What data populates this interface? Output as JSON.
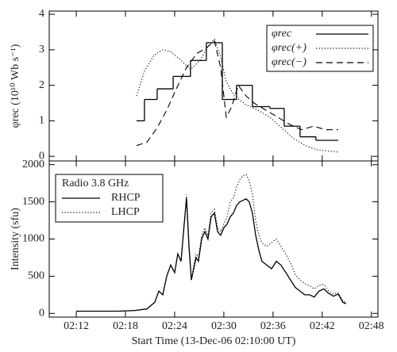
{
  "chart_data": [
    {
      "type": "line",
      "ylabel": "φrec (10¹⁰ Wb s⁻¹)",
      "xlim": [
        "02:08:42",
        "02:48:48"
      ],
      "xticks": [
        "02:12",
        "02:18",
        "02:24",
        "02:30",
        "02:36",
        "02:42",
        "02:48"
      ],
      "show_xtick_labels": false,
      "ylim": [
        -0.13,
        4.09
      ],
      "yticks": [
        0,
        1,
        2,
        3,
        4
      ],
      "legend": "upper right",
      "series": [
        {
          "name": "φrec",
          "color": "#000000",
          "linestyle": "solid",
          "drawstyle": "steps",
          "edges": [
            "02:19:21",
            "02:20:19",
            "02:21:52",
            "02:23:49",
            "02:25:56",
            "02:27:52",
            "02:29:49",
            "02:31:33",
            "02:33:29",
            "02:35:37",
            "02:37:22",
            "02:39:18",
            "02:41:14",
            "02:43:57"
          ],
          "values": [
            1.0,
            1.6,
            1.9,
            2.25,
            2.7,
            3.2,
            1.6,
            2.0,
            1.4,
            1.35,
            0.85,
            0.55,
            0.45
          ]
        },
        {
          "name": "φrec(+)",
          "color": "#000000",
          "linestyle": "dotted",
          "x": [
            "02:19:21",
            "02:20:19",
            "02:21:29",
            "02:22:33",
            "02:23:31",
            "02:24:47",
            "02:25:56",
            "02:27:06",
            "02:28:04",
            "02:28:51",
            "02:29:37",
            "02:30:18",
            "02:31:16",
            "02:32:43",
            "02:34:10",
            "02:35:37",
            "02:37:04",
            "02:38:31",
            "02:39:59",
            "02:41:26",
            "02:43:57"
          ],
          "values": [
            1.7,
            2.4,
            2.85,
            3.0,
            2.95,
            2.7,
            2.45,
            2.7,
            3.1,
            3.3,
            2.8,
            2.1,
            1.7,
            1.45,
            1.3,
            1.1,
            0.8,
            0.5,
            0.3,
            0.18,
            0.12
          ]
        },
        {
          "name": "φrec(−)",
          "color": "#000000",
          "linestyle": "dashed",
          "x": [
            "02:19:21",
            "02:20:37",
            "02:21:52",
            "02:23:02",
            "02:24:12",
            "02:25:27",
            "02:26:43",
            "02:27:52",
            "02:28:51",
            "02:29:37",
            "02:30:18",
            "02:30:58",
            "02:31:45",
            "02:32:43",
            "02:33:41",
            "02:35:08",
            "02:36:35",
            "02:38:02",
            "02:39:29",
            "02:40:57",
            "02:42:24",
            "02:43:57"
          ],
          "values": [
            0.3,
            0.4,
            0.8,
            1.3,
            1.9,
            2.5,
            2.9,
            3.05,
            3.25,
            2.5,
            1.1,
            1.4,
            2.0,
            1.7,
            1.5,
            1.3,
            1.1,
            0.9,
            0.75,
            0.85,
            0.75,
            0.75
          ]
        }
      ]
    },
    {
      "type": "line",
      "xlabel": "Start Time (13-Dec-06 02:10:00 UT)",
      "ylabel": "Intensity (sfu)",
      "xlim": [
        "02:08:42",
        "02:48:48"
      ],
      "xticks": [
        "02:12",
        "02:18",
        "02:24",
        "02:30",
        "02:36",
        "02:42",
        "02:48"
      ],
      "show_xtick_labels": true,
      "ylim": [
        -50,
        2050
      ],
      "yticks": [
        0,
        500,
        1000,
        1500,
        2000
      ],
      "legend": "upper left",
      "legend_title": "Radio 3.8 GHz",
      "x": [
        "02:12:00",
        "02:17:14",
        "02:19:10",
        "02:20:37",
        "02:21:35",
        "02:22:04",
        "02:22:33",
        "02:23:02",
        "02:23:31",
        "02:24:00",
        "02:24:23",
        "02:24:47",
        "02:25:10",
        "02:25:27",
        "02:25:45",
        "02:26:02",
        "02:26:20",
        "02:26:37",
        "02:26:54",
        "02:27:18",
        "02:27:41",
        "02:28:04",
        "02:28:27",
        "02:28:51",
        "02:29:14",
        "02:29:37",
        "02:30:00",
        "02:30:24",
        "02:30:47",
        "02:31:10",
        "02:31:33",
        "02:31:56",
        "02:32:20",
        "02:32:43",
        "02:33:06",
        "02:33:29",
        "02:33:53",
        "02:34:16",
        "02:34:39",
        "02:35:14",
        "02:35:49",
        "02:36:24",
        "02:36:58",
        "02:37:33",
        "02:38:08",
        "02:38:43",
        "02:39:18",
        "02:39:53",
        "02:40:28",
        "02:41:02",
        "02:41:37",
        "02:42:12",
        "02:42:47",
        "02:43:22",
        "02:43:57",
        "02:44:31",
        "02:44:55"
      ],
      "series": [
        {
          "name": "RHCP",
          "color": "#000000",
          "linestyle": "solid",
          "values": [
            30,
            30,
            40,
            60,
            150,
            300,
            250,
            500,
            650,
            550,
            800,
            700,
            1200,
            1550,
            900,
            450,
            600,
            750,
            700,
            1000,
            1100,
            1000,
            1300,
            1350,
            1100,
            1050,
            1150,
            1200,
            1300,
            1350,
            1450,
            1500,
            1520,
            1540,
            1500,
            1350,
            1050,
            850,
            700,
            650,
            600,
            700,
            650,
            550,
            450,
            350,
            300,
            250,
            250,
            220,
            300,
            330,
            270,
            230,
            260,
            150,
            130
          ]
        },
        {
          "name": "LHCP",
          "color": "#000000",
          "linestyle": "dotted",
          "values": [
            30,
            30,
            40,
            60,
            150,
            300,
            250,
            500,
            650,
            550,
            800,
            700,
            1200,
            1600,
            950,
            450,
            650,
            800,
            750,
            1050,
            1150,
            1050,
            1350,
            1400,
            1150,
            1100,
            1200,
            1300,
            1500,
            1550,
            1700,
            1800,
            1850,
            1870,
            1780,
            1600,
            1250,
            1050,
            950,
            900,
            950,
            1000,
            900,
            800,
            680,
            520,
            450,
            400,
            370,
            330,
            380,
            390,
            300,
            260,
            280,
            170,
            140
          ]
        }
      ]
    }
  ]
}
